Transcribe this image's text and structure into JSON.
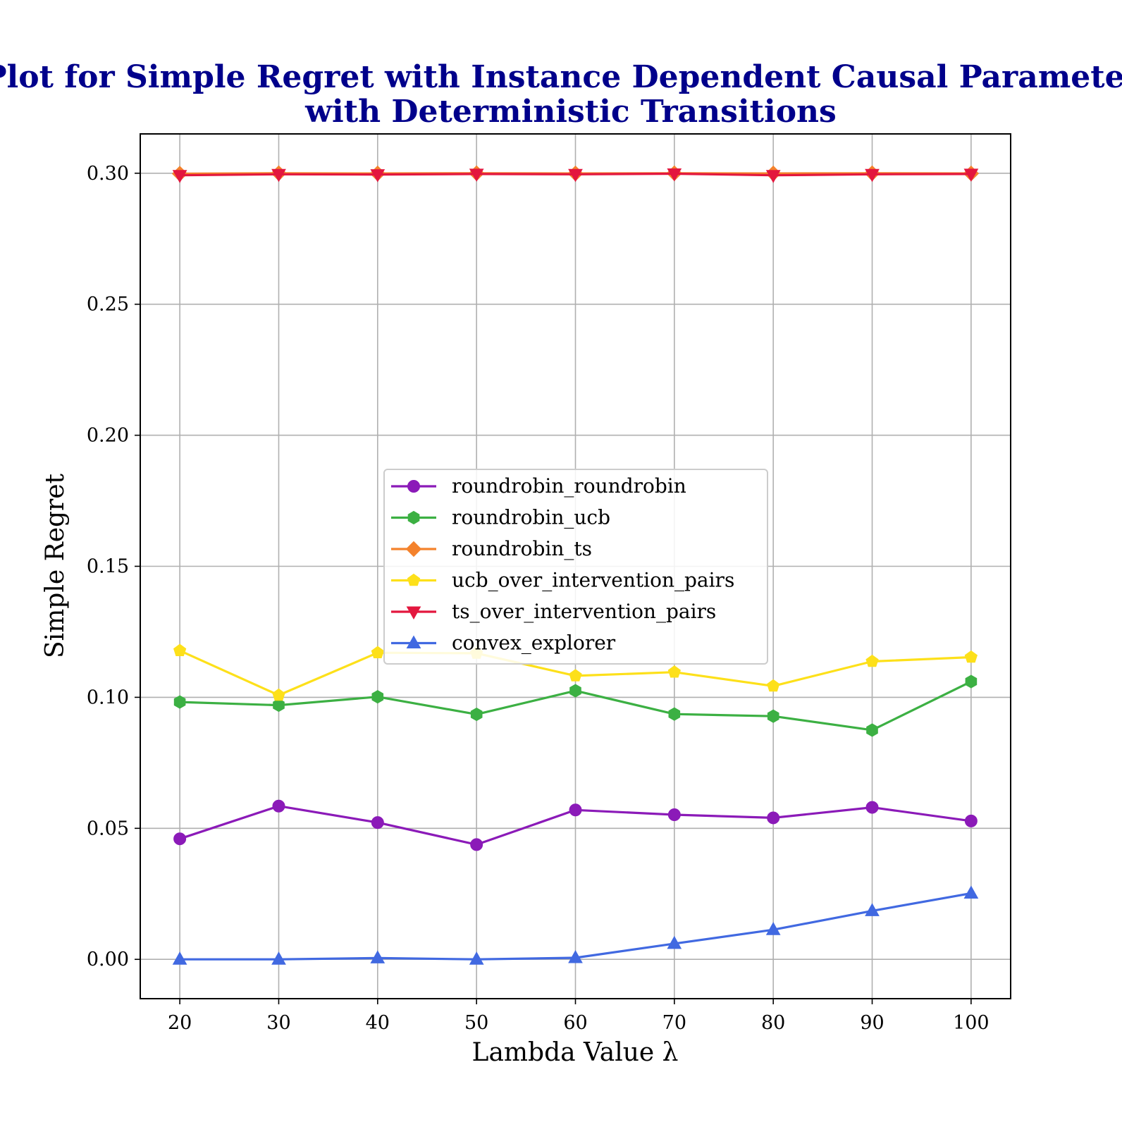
{
  "chart_data": {
    "type": "line",
    "title_lines": [
      "Plot for Simple Regret with Instance Dependent Causal Parameters",
      "with Deterministic Transitions"
    ],
    "xlabel": "Lambda Value λ",
    "ylabel": "Simple Regret",
    "x": [
      20,
      30,
      40,
      50,
      60,
      70,
      80,
      90,
      100
    ],
    "xticks": [
      "20",
      "30",
      "40",
      "50",
      "60",
      "70",
      "80",
      "90",
      "100"
    ],
    "yticks": [
      "0.00",
      "0.05",
      "0.10",
      "0.15",
      "0.20",
      "0.25",
      "0.30"
    ],
    "xlim": [
      16,
      104
    ],
    "ylim": [
      -0.015,
      0.315
    ],
    "grid": true,
    "legend_position": "center",
    "title_color": "#00008b",
    "series": [
      {
        "name": "roundrobin_roundrobin",
        "color": "#8b1ab8",
        "marker": "circle",
        "values": [
          0.046,
          0.0585,
          0.0522,
          0.0438,
          0.057,
          0.0552,
          0.054,
          0.058,
          0.0528
        ]
      },
      {
        "name": "roundrobin_ucb",
        "color": "#3cb043",
        "marker": "hexagon",
        "values": [
          0.0982,
          0.097,
          0.1002,
          0.0935,
          0.1025,
          0.0936,
          0.0928,
          0.0875,
          0.106
        ]
      },
      {
        "name": "roundrobin_ts",
        "color": "#f4822c",
        "marker": "diamond",
        "values": [
          0.2998,
          0.3,
          0.2999,
          0.3,
          0.2999,
          0.3,
          0.2999,
          0.3,
          0.2999
        ]
      },
      {
        "name": "ucb_over_intervention_pairs",
        "color": "#fde01a",
        "marker": "pentagon",
        "values": [
          0.1178,
          0.1008,
          0.117,
          0.1168,
          0.1082,
          0.1096,
          0.1043,
          0.1137,
          0.1153
        ]
      },
      {
        "name": "ts_over_intervention_pairs",
        "color": "#e3173e",
        "marker": "triangle-down",
        "values": [
          0.2992,
          0.2996,
          0.2995,
          0.2997,
          0.2996,
          0.2998,
          0.2992,
          0.2996,
          0.2997
        ]
      },
      {
        "name": "convex_explorer",
        "color": "#4169e1",
        "marker": "triangle-up",
        "values": [
          0.0,
          0.0,
          0.0005,
          0.0,
          0.0006,
          0.006,
          0.0113,
          0.0185,
          0.0252
        ]
      }
    ]
  }
}
